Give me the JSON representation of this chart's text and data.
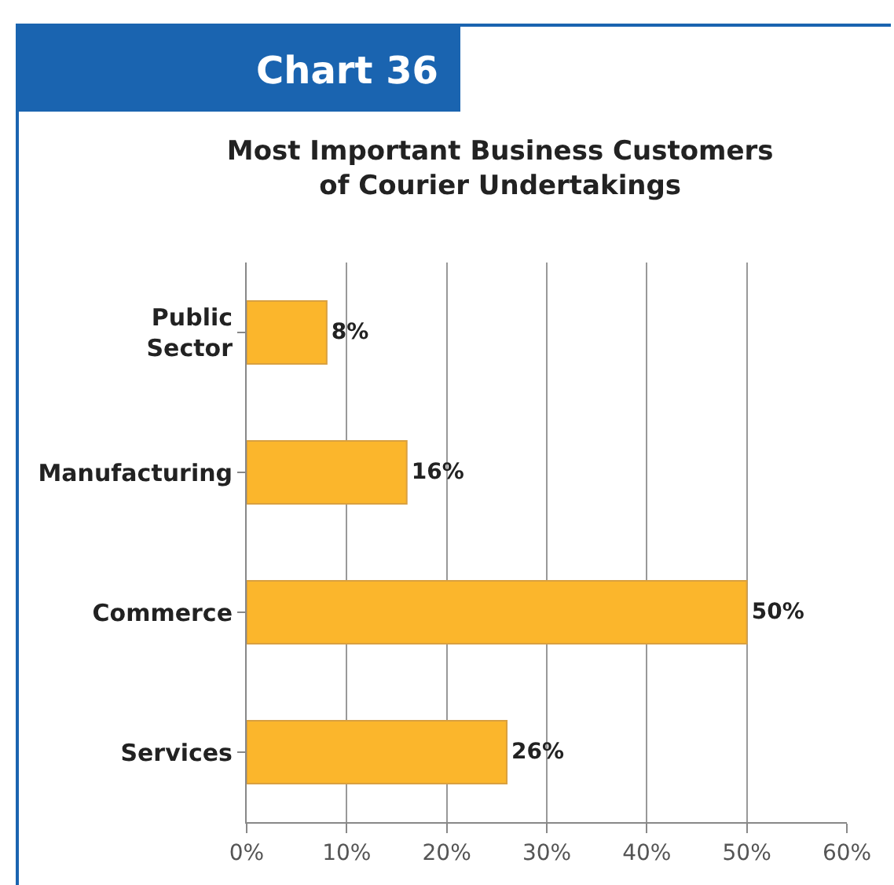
{
  "chart_data": {
    "type": "bar",
    "orientation": "horizontal",
    "title": "Most Important Business Customers\nof Courier Undertakings",
    "annotations": [
      "Chart 36"
    ],
    "categories": [
      "Public Sector",
      "Manufacturing",
      "Commerce",
      "Services"
    ],
    "values": [
      8,
      16,
      50,
      26
    ],
    "value_labels": [
      "8%",
      "16%",
      "50%",
      "26%"
    ],
    "color": "#fbb62c",
    "xlim": [
      0,
      60
    ],
    "xticks": [
      {
        "value": 0,
        "label": "0%"
      },
      {
        "value": 10,
        "label": "10%"
      },
      {
        "value": 20,
        "label": "20%"
      },
      {
        "value": 30,
        "label": "30%"
      },
      {
        "value": 40,
        "label": "40%"
      },
      {
        "value": 50,
        "label": "50%"
      },
      {
        "value": 60,
        "label": "60%"
      }
    ],
    "grid": "x"
  }
}
